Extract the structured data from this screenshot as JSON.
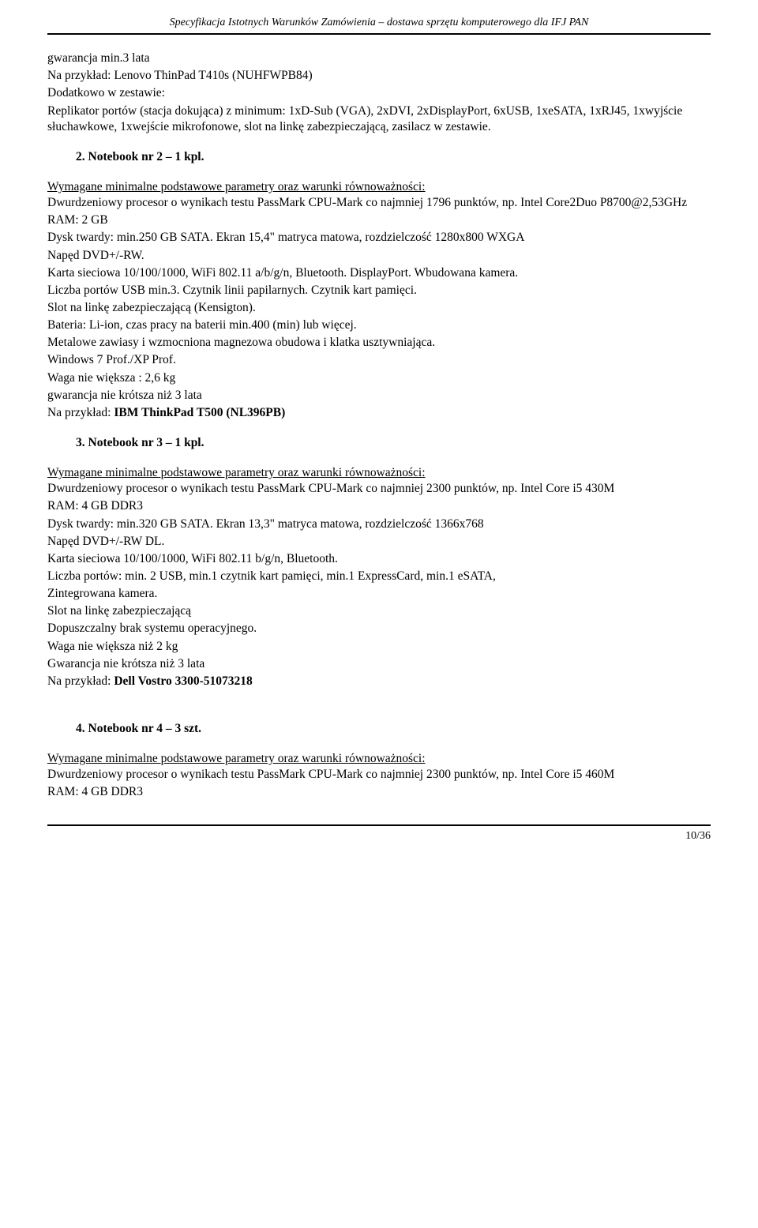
{
  "header": {
    "title": "Specyfikacja Istotnych Warunków Zamówienia – dostawa sprzętu komputerowego dla IFJ PAN"
  },
  "intro": {
    "lines": [
      "gwarancja min.3 lata",
      "Na przykład: Lenovo ThinPad T410s  (NUHFWPB84)",
      "Dodatkowo w zestawie:",
      "Replikator portów (stacja dokująca) z minimum: 1xD-Sub (VGA), 2xDVI, 2xDisplayPort, 6xUSB, 1xeSATA, 1xRJ45, 1xwyjście słuchawkowe, 1xwejście mikrofonowe, slot na linkę zabezpieczającą, zasilacz w zestawie."
    ]
  },
  "section2": {
    "heading": "2.  Notebook nr 2 – 1 kpl.",
    "subheading": "Wymagane minimalne podstawowe parametry oraz warunki równoważności:",
    "lines": [
      "Dwurdzeniowy procesor o wynikach testu PassMark CPU-Mark co najmniej 1796 punktów, np. Intel Core2Duo P8700@2,53GHz",
      "RAM: 2 GB",
      "Dysk twardy: min.250 GB SATA.  Ekran 15,4\" matryca matowa, rozdzielczość 1280x800 WXGA",
      "Napęd DVD+/-RW.",
      "Karta sieciowa 10/100/1000, WiFi 802.11 a/b/g/n, Bluetooth. DisplayPort. Wbudowana kamera.",
      "Liczba portów USB min.3. Czytnik linii papilarnych. Czytnik kart pamięci.",
      "Slot na linkę zabezpieczającą (Kensigton).",
      "Bateria: Li-ion, czas pracy na baterii min.400 (min) lub więcej.",
      "Metalowe zawiasy i wzmocniona magnezowa obudowa i klatka usztywniająca.",
      "Windows 7 Prof./XP Prof.",
      "Waga nie większa : 2,6 kg",
      "gwarancja nie krótsza niż 3 lata"
    ],
    "example_prefix": "Na przykład: ",
    "example_bold": "IBM ThinkPad T500 (NL396PB)"
  },
  "section3": {
    "heading": "3.  Notebook nr 3 – 1 kpl.",
    "subheading": "Wymagane minimalne podstawowe parametry oraz warunki równoważności:",
    "lines": [
      "Dwurdzeniowy procesor o wynikach testu PassMark CPU-Mark co najmniej 2300 punktów, np. Intel Core i5 430M",
      "RAM: 4 GB DDR3",
      "Dysk twardy: min.320 GB SATA.  Ekran 13,3\" matryca matowa, rozdzielczość 1366x768",
      "Napęd DVD+/-RW DL.",
      "Karta sieciowa 10/100/1000, WiFi 802.11 b/g/n, Bluetooth.",
      "Liczba portów: min. 2 USB,  min.1 czytnik kart pamięci, min.1 ExpressCard, min.1 eSATA,",
      "Zintegrowana kamera.",
      "Slot na linkę zabezpieczającą",
      "Dopuszczalny brak systemu operacyjnego.",
      "Waga nie większa niż 2 kg",
      "Gwarancja nie krótsza niż 3 lata"
    ],
    "example_prefix": "Na przykład: ",
    "example_bold": "Dell Vostro 3300-51073218"
  },
  "section4": {
    "heading": "4.  Notebook nr 4 – 3 szt.",
    "subheading": "Wymagane minimalne podstawowe parametry oraz warunki równoważności:",
    "lines": [
      "Dwurdzeniowy procesor o wynikach testu PassMark CPU-Mark co najmniej 2300 punktów, np. Intel Core i5 460M",
      "RAM: 4 GB DDR3"
    ]
  },
  "footer": {
    "page": "10/36"
  }
}
